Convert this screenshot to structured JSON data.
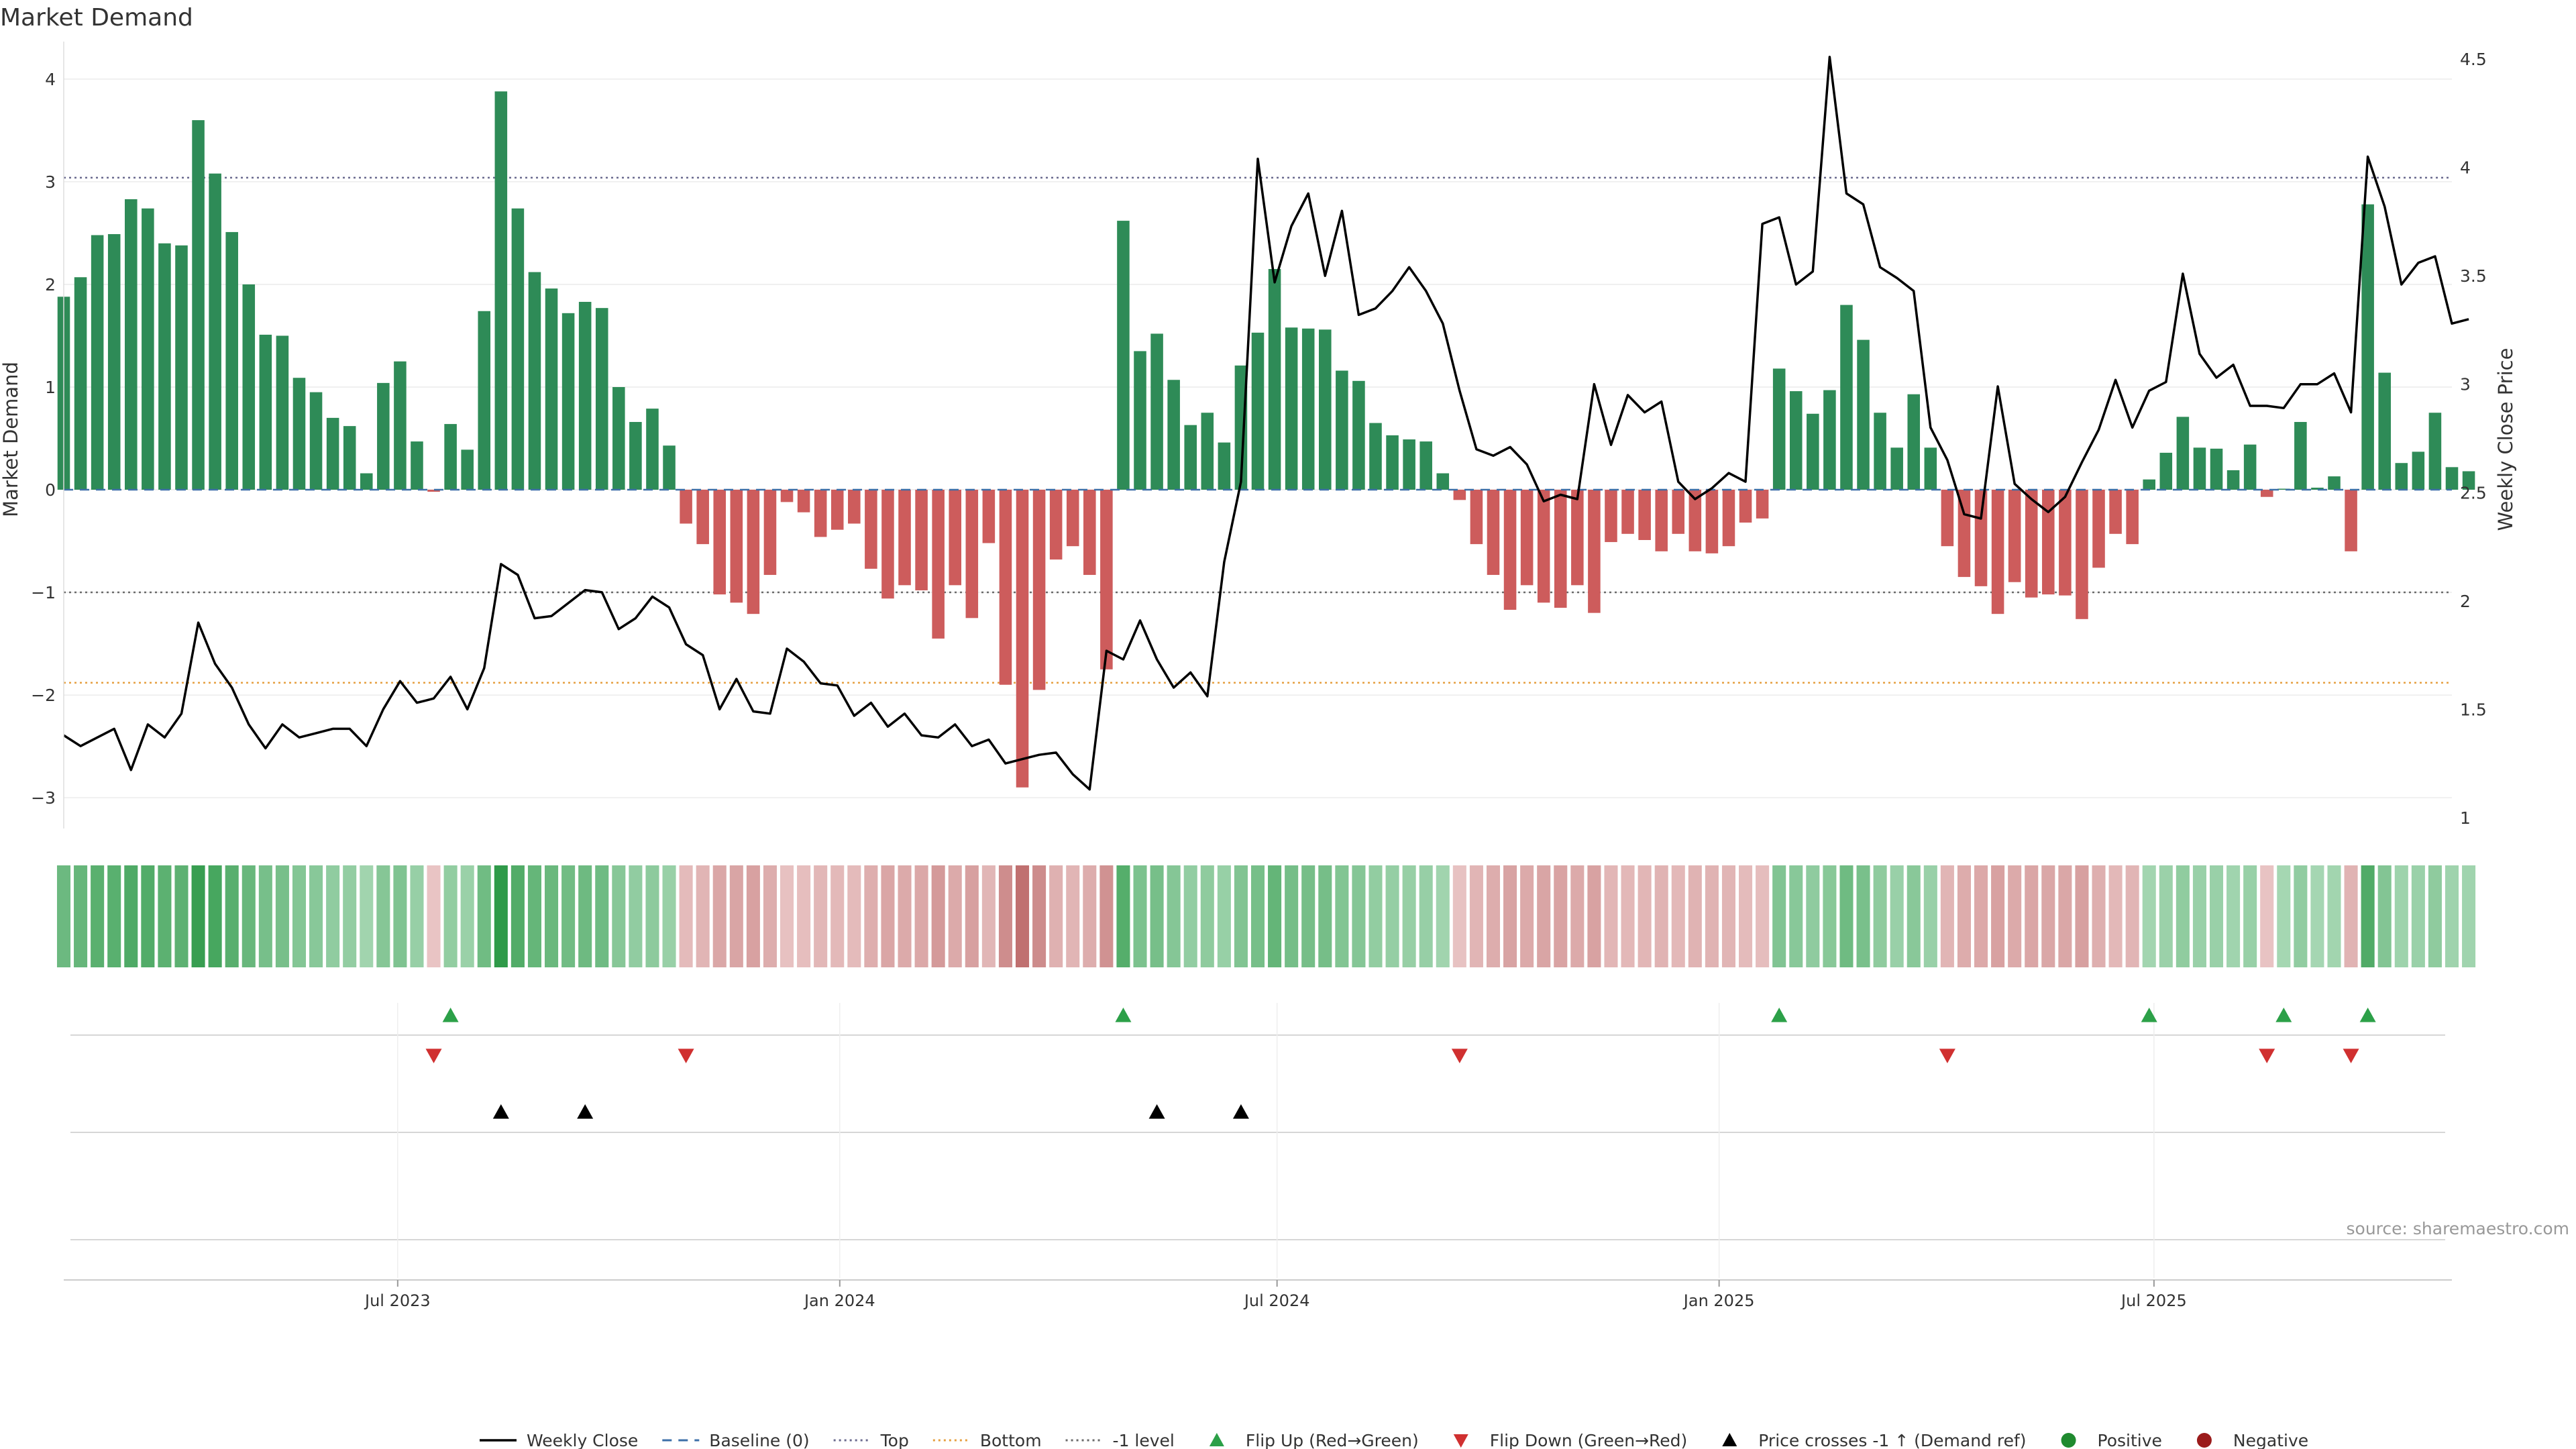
{
  "chart_data": {
    "type": "bar",
    "title": "Market Demand",
    "ylabel": "Market Demand",
    "y2label": "Weekly Close Price",
    "ylim": [
      -3.3,
      4.3
    ],
    "y2lim": [
      0.95,
      4.55
    ],
    "yticks": [
      -3,
      -2,
      -1,
      0,
      1,
      2,
      3,
      4
    ],
    "y2ticks": [
      1,
      1.5,
      2,
      2.5,
      3,
      3.5,
      4,
      4.5
    ],
    "x_start": "2023-02-12",
    "x_end": "2025-11-02",
    "xticks": [
      {
        "label": "Jul 2023",
        "date": "2023-07-01"
      },
      {
        "label": "Jan 2024",
        "date": "2024-01-01"
      },
      {
        "label": "Jul 2024",
        "date": "2024-07-01"
      },
      {
        "label": "Jan 2025",
        "date": "2025-01-01"
      },
      {
        "label": "Jul 2025",
        "date": "2025-07-01"
      }
    ],
    "weeks_start": "2023-02-12",
    "demand": [
      1.88,
      2.07,
      2.48,
      2.49,
      2.83,
      2.74,
      2.4,
      2.38,
      3.6,
      3.08,
      2.51,
      2.0,
      1.51,
      1.5,
      1.09,
      0.95,
      0.7,
      0.62,
      0.16,
      1.04,
      1.25,
      0.47,
      -0.02,
      0.64,
      0.39,
      1.74,
      3.88,
      2.74,
      2.12,
      1.96,
      1.72,
      1.83,
      1.77,
      1.0,
      0.66,
      0.79,
      0.43,
      -0.33,
      -0.53,
      -1.02,
      -1.1,
      -1.21,
      -0.83,
      -0.12,
      -0.22,
      -0.46,
      -0.39,
      -0.33,
      -0.77,
      -1.06,
      -0.93,
      -0.98,
      -1.45,
      -0.93,
      -1.25,
      -0.52,
      -1.9,
      -2.9,
      -1.95,
      -0.68,
      -0.55,
      -0.83,
      -1.75,
      2.62,
      1.35,
      1.52,
      1.07,
      0.63,
      0.75,
      0.46,
      1.21,
      1.53,
      2.15,
      1.58,
      1.57,
      1.56,
      1.16,
      1.06,
      0.65,
      0.53,
      0.49,
      0.47,
      0.16,
      -0.1,
      -0.53,
      -0.83,
      -1.17,
      -0.93,
      -1.1,
      -1.15,
      -0.93,
      -1.2,
      -0.51,
      -0.43,
      -0.49,
      -0.6,
      -0.43,
      -0.6,
      -0.62,
      -0.55,
      -0.32,
      -0.28,
      1.18,
      0.96,
      0.74,
      0.97,
      1.8,
      1.46,
      0.75,
      0.41,
      0.93,
      0.41,
      -0.55,
      -0.85,
      -0.94,
      -1.21,
      -0.9,
      -1.05,
      -1.02,
      -1.03,
      -1.26,
      -0.76,
      -0.43,
      -0.53,
      0.1,
      0.36,
      0.71,
      0.41,
      0.4,
      0.19,
      0.44,
      -0.07,
      0.01,
      0.66,
      0.02,
      0.13,
      -0.6,
      2.78,
      1.14,
      0.26,
      0.37,
      0.75,
      0.22,
      0.18
    ],
    "close": [
      1.38,
      1.33,
      1.37,
      1.41,
      1.22,
      1.43,
      1.37,
      1.48,
      1.9,
      1.71,
      1.6,
      1.43,
      1.32,
      1.43,
      1.37,
      1.39,
      1.41,
      1.41,
      1.33,
      1.5,
      1.63,
      1.53,
      1.55,
      1.65,
      1.5,
      1.69,
      2.17,
      2.12,
      1.92,
      1.93,
      1.99,
      2.05,
      2.04,
      1.87,
      1.92,
      2.02,
      1.97,
      1.8,
      1.75,
      1.5,
      1.64,
      1.49,
      1.48,
      1.78,
      1.72,
      1.62,
      1.61,
      1.47,
      1.53,
      1.42,
      1.48,
      1.38,
      1.37,
      1.43,
      1.33,
      1.36,
      1.25,
      1.27,
      1.29,
      1.3,
      1.2,
      1.13,
      1.77,
      1.73,
      1.91,
      1.73,
      1.6,
      1.67,
      1.56,
      2.18,
      2.55,
      4.04,
      3.47,
      3.73,
      3.88,
      3.5,
      3.8,
      3.32,
      3.35,
      3.43,
      3.54,
      3.43,
      3.28,
      2.97,
      2.7,
      2.67,
      2.71,
      2.63,
      2.46,
      2.49,
      2.47,
      3.0,
      2.72,
      2.95,
      2.87,
      2.92,
      2.55,
      2.47,
      2.52,
      2.59,
      2.55,
      3.74,
      3.77,
      3.46,
      3.52,
      4.51,
      3.88,
      3.83,
      3.54,
      3.49,
      3.43,
      2.8,
      2.65,
      2.4,
      2.38,
      2.99,
      2.54,
      2.47,
      2.41,
      2.48,
      2.64,
      2.79,
      3.02,
      2.8,
      2.97,
      3.01,
      3.51,
      3.14,
      3.03,
      3.09,
      2.9,
      2.9,
      2.89,
      3.0,
      3.0,
      3.05,
      2.87,
      4.05,
      3.82,
      3.46,
      3.56,
      3.59,
      3.28,
      3.3
    ],
    "reference_lines": [
      {
        "name": "Top",
        "value": 3.04,
        "color": "#6a6a8e",
        "style": "dotted"
      },
      {
        "name": "-1 level",
        "value": -1,
        "color": "#6a6a6a",
        "style": "dotted"
      },
      {
        "name": "Bottom",
        "value": -1.88,
        "color": "#e6a041",
        "style": "dotted"
      }
    ],
    "flip_up_weeks": [
      23,
      63,
      102,
      124,
      132,
      137
    ],
    "flip_down_weeks": [
      22,
      37,
      83,
      112,
      131,
      136
    ],
    "price_cross_weeks": [
      26,
      31,
      65,
      70
    ],
    "source": "source: sharemaestro.com",
    "colors": {
      "positive": "#2e8b57",
      "negative": "#cd5c5c",
      "price": "#000000",
      "flip_up": "#2ca048",
      "flip_down": "#d03030",
      "positive_dot": "#1f8a2f",
      "negative_dot": "#9b1b1b",
      "baseline": "#3d6fa8"
    },
    "legend": {
      "placement": "bottom-center",
      "entries": [
        {
          "label": "Weekly Close",
          "kind": "line"
        },
        {
          "label": "Baseline (0)",
          "kind": "dash"
        },
        {
          "label": "Top",
          "kind": "dot-top"
        },
        {
          "label": "Bottom",
          "kind": "dot-bottom"
        },
        {
          "label": "-1 level",
          "kind": "dot-minus"
        },
        {
          "label": "Flip Up (Red→Green)",
          "kind": "tri-up-green"
        },
        {
          "label": "Flip Down (Green→Red)",
          "kind": "tri-down-red"
        },
        {
          "label": "Price crosses -1 ↑ (Demand ref)",
          "kind": "tri-up-black"
        },
        {
          "label": "Positive",
          "kind": "dot-green"
        },
        {
          "label": "Negative",
          "kind": "dot-red"
        }
      ]
    }
  }
}
